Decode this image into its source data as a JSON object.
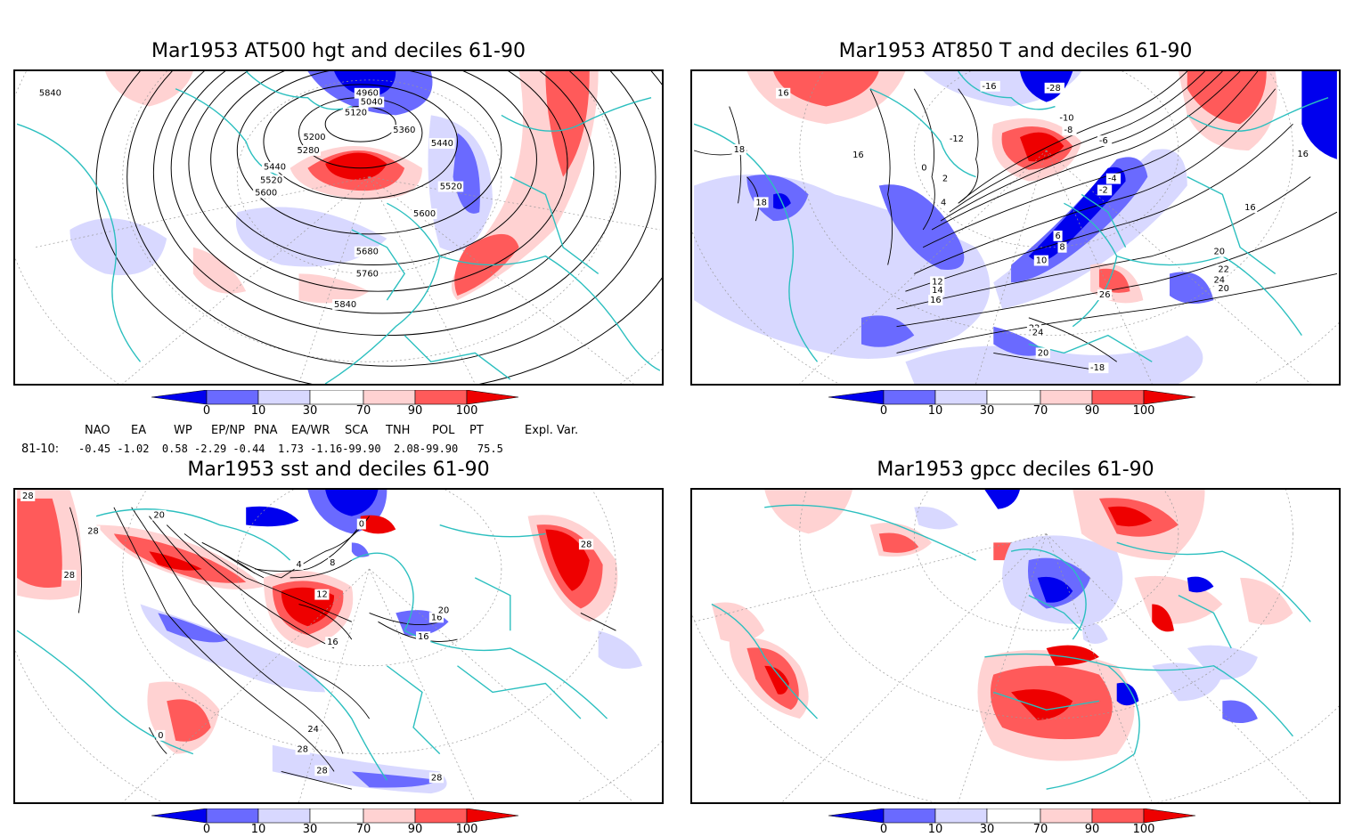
{
  "panels": [
    {
      "id": "p1",
      "title": "Mar1953 AT500 hgt and deciles 61-90",
      "contour_labels": [
        "5840",
        "4960",
        "5040",
        "5120",
        "5200",
        "5280",
        "5360",
        "5440",
        "5440",
        "5520",
        "5520",
        "5600",
        "5600",
        "5680",
        "5760",
        "5840"
      ]
    },
    {
      "id": "p2",
      "title": "Mar1953 AT850 T and deciles 61-90",
      "contour_labels": [
        "20",
        "16",
        "16",
        "-16",
        "-28",
        "-10",
        "-8",
        "-12",
        "-6",
        "-4",
        "-2",
        "0",
        "2",
        "4",
        "6",
        "8",
        "10",
        "12",
        "14",
        "16",
        "18",
        "20",
        "22",
        "24",
        "26",
        "20",
        "22",
        "24",
        "20",
        "16",
        "16",
        "18",
        "-18"
      ]
    },
    {
      "id": "p3",
      "title": "Mar1953 sst and deciles 61-90",
      "contour_labels": [
        "28",
        "20",
        "28",
        "28",
        "0",
        "4",
        "8",
        "12",
        "16",
        "16",
        "16",
        "20",
        "24",
        "28",
        "28",
        "28",
        "28",
        "0"
      ]
    },
    {
      "id": "p4",
      "title": "Mar1953 gpcc deciles 61-90",
      "contour_labels": []
    }
  ],
  "colorbar": {
    "labels": [
      "0",
      "10",
      "30",
      "70",
      "90",
      "100"
    ],
    "colors": [
      "#0000ee",
      "#6a6aff",
      "#d8d8ff",
      "#ffffff",
      "#ffd2d2",
      "#ff5a5a",
      "#ee0000"
    ]
  },
  "indices": {
    "headers": [
      "NAO",
      "EA",
      "WP",
      "EP/NP",
      "PNA",
      "EA/WR",
      "SCA",
      "TNH",
      "POL",
      "PT",
      "Expl. Var."
    ],
    "row_label": "81-10:",
    "values": "-0.45 -1.02  0.58 -2.29 -0.44  1.73 -1.16-99.90  2.08-99.90   75.5"
  }
}
